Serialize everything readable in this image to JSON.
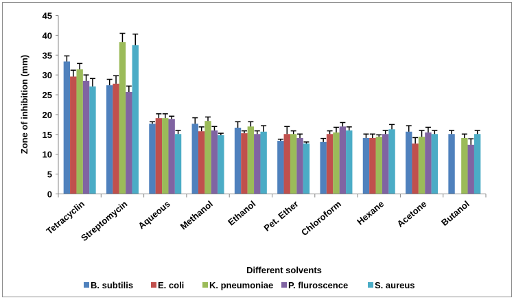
{
  "chart_data": {
    "type": "bar",
    "title": "",
    "xlabel": "Different solvents",
    "ylabel": "Zone of inhibition (mm)",
    "ylim": [
      0,
      45
    ],
    "yticks": [
      0,
      5,
      10,
      15,
      20,
      25,
      30,
      35,
      40,
      45
    ],
    "grid": false,
    "legend_position": "bottom",
    "categories": [
      "Tetracyclin",
      "Streptomycin",
      "Aqueous",
      "Methanol",
      "Ethanol",
      "Pet. Ether",
      "Chloroform",
      "Hexane",
      "Acetone",
      "Butanol"
    ],
    "series": [
      {
        "name": "B. subtilis",
        "color": "#4F81BD",
        "values": [
          33.4,
          27.4,
          17.7,
          17.7,
          16.7,
          13.4,
          13.1,
          14.1,
          15.7,
          15.1
        ],
        "errors": [
          1.4,
          1.5,
          0.5,
          1.5,
          1.5,
          0.4,
          0.9,
          1.0,
          1.5,
          0.9
        ]
      },
      {
        "name": "E. coli",
        "color": "#C0504D",
        "values": [
          29.6,
          27.8,
          19.1,
          15.8,
          15.3,
          15.1,
          15.1,
          14.1,
          12.7,
          0
        ],
        "errors": [
          1.6,
          2.0,
          1.1,
          1.1,
          0.6,
          1.9,
          0.8,
          1.0,
          1.5,
          0
        ]
      },
      {
        "name": "K. pneumoniae",
        "color": "#9BBB59",
        "values": [
          31.4,
          38.3,
          19.1,
          18.4,
          17.0,
          15.1,
          15.5,
          14.4,
          14.4,
          14.1
        ],
        "errors": [
          1.5,
          2.2,
          1.1,
          1.0,
          1.2,
          0.8,
          1.3,
          0.5,
          1.6,
          1.0
        ]
      },
      {
        "name": "P. fluroscence",
        "color": "#8064A2",
        "values": [
          28.5,
          25.7,
          18.9,
          16.0,
          15.1,
          14.1,
          17.0,
          15.1,
          15.5,
          12.4
        ],
        "errors": [
          1.5,
          1.5,
          0.7,
          1.0,
          0.8,
          1.0,
          1.0,
          0.9,
          1.3,
          1.5
        ]
      },
      {
        "name": "S. aureus",
        "color": "#4BACC6",
        "values": [
          27.1,
          37.5,
          15.1,
          14.8,
          15.7,
          12.7,
          16.0,
          16.3,
          15.1,
          15.1
        ],
        "errors": [
          2.0,
          2.8,
          0.9,
          0.5,
          1.5,
          0.4,
          0.9,
          1.2,
          0.9,
          0.9
        ]
      }
    ]
  }
}
